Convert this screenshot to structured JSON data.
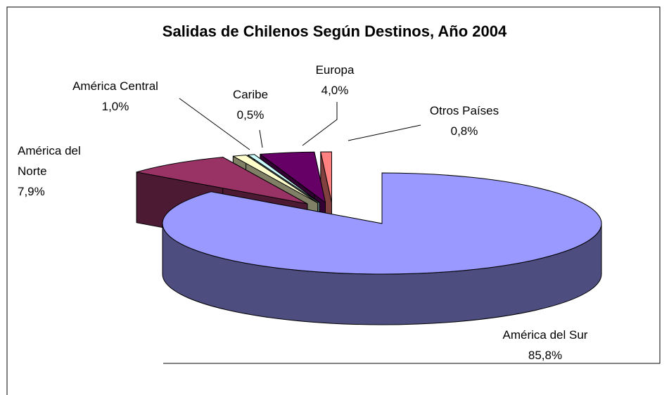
{
  "chart_data": {
    "type": "pie3d",
    "title": "Salidas de Chilenos Según Destinos, Año 2004",
    "categories": [
      "América del Sur",
      "América del Norte",
      "América Central",
      "Caribe",
      "Europa",
      "Otros Países"
    ],
    "values": [
      85.8,
      7.9,
      1.0,
      0.5,
      4.0,
      0.8
    ],
    "value_labels": [
      "85,8%",
      "7,9%",
      "1,0%",
      "0,5%",
      "4,0%",
      "0,8%"
    ],
    "colors": [
      "#9999ff",
      "#993366",
      "#ffffcc",
      "#ccffff",
      "#660066",
      "#ff8080"
    ]
  }
}
